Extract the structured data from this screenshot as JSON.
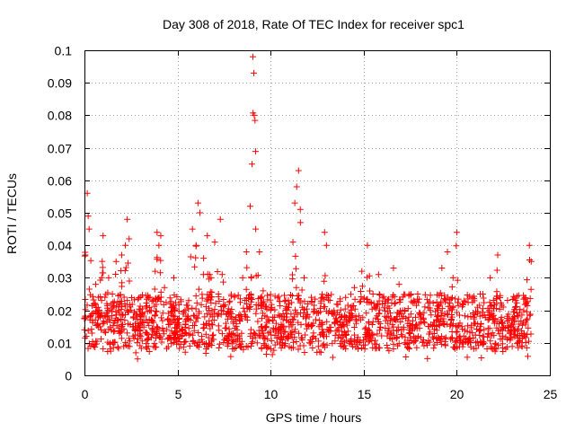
{
  "chart_data": {
    "type": "scatter",
    "title": "Day 308 of 2018, Rate Of TEC Index for receiver spc1",
    "xlabel": "GPS time / hours",
    "ylabel": "ROTI / TECUs",
    "xlim": [
      0,
      25
    ],
    "ylim": [
      0,
      0.1
    ],
    "x_ticks": [
      "0",
      "5",
      "10",
      "15",
      "20",
      "25"
    ],
    "y_ticks": [
      "0",
      "0.01",
      "0.02",
      "0.03",
      "0.04",
      "0.05",
      "0.06",
      "0.07",
      "0.08",
      "0.09",
      "0.1"
    ],
    "grid": true,
    "marker": "+",
    "color": "#ff0000",
    "sample_points": [
      [
        0.0,
        0.014
      ],
      [
        0.05,
        0.037
      ],
      [
        0.1,
        0.012
      ],
      [
        0.15,
        0.056
      ],
      [
        0.2,
        0.049
      ],
      [
        0.25,
        0.045
      ],
      [
        0.3,
        0.018
      ],
      [
        0.4,
        0.013
      ],
      [
        0.5,
        0.022
      ],
      [
        0.6,
        0.028
      ],
      [
        0.7,
        0.016
      ],
      [
        0.8,
        0.02
      ],
      [
        0.9,
        0.014
      ],
      [
        1.0,
        0.043
      ],
      [
        1.1,
        0.024
      ],
      [
        1.2,
        0.019
      ],
      [
        1.3,
        0.03
      ],
      [
        1.5,
        0.025
      ],
      [
        1.7,
        0.035
      ],
      [
        1.9,
        0.022
      ],
      [
        2.0,
        0.037
      ],
      [
        2.2,
        0.04
      ],
      [
        2.3,
        0.048
      ],
      [
        2.4,
        0.042
      ],
      [
        2.5,
        0.02
      ],
      [
        2.7,
        0.014
      ],
      [
        3.0,
        0.018
      ],
      [
        3.3,
        0.021
      ],
      [
        3.6,
        0.017
      ],
      [
        3.8,
        0.032
      ],
      [
        3.9,
        0.044
      ],
      [
        4.0,
        0.04
      ],
      [
        4.1,
        0.043
      ],
      [
        4.3,
        0.027
      ],
      [
        4.6,
        0.022
      ],
      [
        4.8,
        0.03
      ],
      [
        5.0,
        0.015
      ],
      [
        5.2,
        0.012
      ],
      [
        5.4,
        0.02
      ],
      [
        5.6,
        0.023
      ],
      [
        5.8,
        0.045
      ],
      [
        6.0,
        0.04
      ],
      [
        6.1,
        0.053
      ],
      [
        6.2,
        0.05
      ],
      [
        6.4,
        0.036
      ],
      [
        6.6,
        0.043
      ],
      [
        6.8,
        0.03
      ],
      [
        7.0,
        0.041
      ],
      [
        7.2,
        0.025
      ],
      [
        7.3,
        0.048
      ],
      [
        7.4,
        0.031
      ],
      [
        7.6,
        0.016
      ],
      [
        7.8,
        0.013
      ],
      [
        8.0,
        0.016
      ],
      [
        8.2,
        0.014
      ],
      [
        8.5,
        0.03
      ],
      [
        8.7,
        0.038
      ],
      [
        8.9,
        0.052
      ],
      [
        9.0,
        0.065
      ],
      [
        9.05,
        0.098
      ],
      [
        9.1,
        0.093
      ],
      [
        9.12,
        0.08
      ],
      [
        9.2,
        0.045
      ],
      [
        9.4,
        0.038
      ],
      [
        9.6,
        0.026
      ],
      [
        9.8,
        0.018
      ],
      [
        10.0,
        0.02
      ],
      [
        10.3,
        0.016
      ],
      [
        10.6,
        0.018
      ],
      [
        11.0,
        0.022
      ],
      [
        11.2,
        0.041
      ],
      [
        11.3,
        0.053
      ],
      [
        11.4,
        0.058
      ],
      [
        11.5,
        0.063
      ],
      [
        11.6,
        0.047
      ],
      [
        11.8,
        0.03
      ],
      [
        12.0,
        0.022
      ],
      [
        12.3,
        0.016
      ],
      [
        12.6,
        0.015
      ],
      [
        12.8,
        0.024
      ],
      [
        12.9,
        0.044
      ],
      [
        13.0,
        0.04
      ],
      [
        13.3,
        0.019
      ],
      [
        13.6,
        0.014
      ],
      [
        14.0,
        0.018
      ],
      [
        14.5,
        0.027
      ],
      [
        14.9,
        0.032
      ],
      [
        15.2,
        0.04
      ],
      [
        15.5,
        0.025
      ],
      [
        15.8,
        0.031
      ],
      [
        16.0,
        0.022
      ],
      [
        16.3,
        0.016
      ],
      [
        16.6,
        0.033
      ],
      [
        16.9,
        0.028
      ],
      [
        17.2,
        0.02
      ],
      [
        17.5,
        0.015
      ],
      [
        18.0,
        0.016
      ],
      [
        18.5,
        0.015
      ],
      [
        19.0,
        0.02
      ],
      [
        19.2,
        0.033
      ],
      [
        19.5,
        0.038
      ],
      [
        19.8,
        0.03
      ],
      [
        20.0,
        0.044
      ],
      [
        20.3,
        0.022
      ],
      [
        20.6,
        0.018
      ],
      [
        21.0,
        0.016
      ],
      [
        21.4,
        0.025
      ],
      [
        21.8,
        0.03
      ],
      [
        22.2,
        0.037
      ],
      [
        22.5,
        0.021
      ],
      [
        22.9,
        0.015
      ],
      [
        23.3,
        0.018
      ],
      [
        23.6,
        0.012
      ],
      [
        23.9,
        0.04
      ],
      [
        24.0,
        0.035
      ]
    ]
  }
}
